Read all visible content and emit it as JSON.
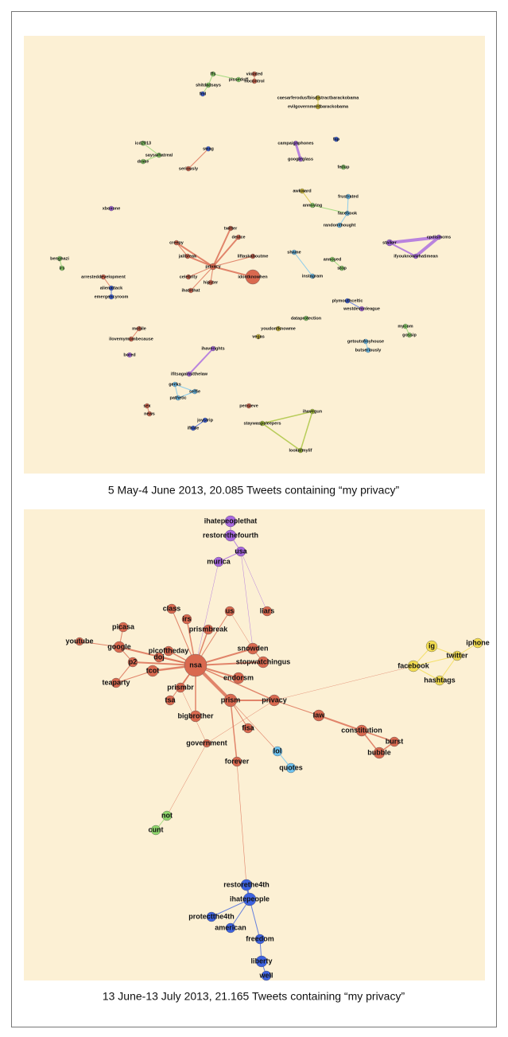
{
  "figure": {
    "panels": [
      {
        "caption": "5 May-4 June 2013, 20.085 Tweets containing “my privacy”",
        "nodes": [
          {
            "label": "ffs",
            "color": "#8fd66b"
          },
          {
            "label": "shitdadsays",
            "color": "#8fd66b"
          },
          {
            "label": "fml",
            "color": "#3e63e0"
          },
          {
            "label": "pissedoff",
            "color": "#8fd66b"
          },
          {
            "label": "violated",
            "color": "#d9694f"
          },
          {
            "label": "nocontrol",
            "color": "#d9694f"
          },
          {
            "label": "caesarferodusfbisdistractbarackobama",
            "color": "#d6c23a"
          },
          {
            "label": "evilgovernmentbarackobama",
            "color": "#d6c23a"
          },
          {
            "label": "icd2013",
            "color": "#8fd66b"
          },
          {
            "label": "sayswhatreal",
            "color": "#8fd66b"
          },
          {
            "label": "drake",
            "color": "#8fd66b"
          },
          {
            "label": "seriously",
            "color": "#d9694f"
          },
          {
            "label": "swag",
            "color": "#3e63e0"
          },
          {
            "label": "campaignphones",
            "color": "#a868e0"
          },
          {
            "label": "googleglass",
            "color": "#a868e0"
          },
          {
            "label": "fap",
            "color": "#3e63e0"
          },
          {
            "label": "fedup",
            "color": "#8fd66b"
          },
          {
            "label": "awkward",
            "color": "#d6c23a"
          },
          {
            "label": "frustrated",
            "color": "#6fc3f0"
          },
          {
            "label": "annoying",
            "color": "#8fd66b"
          },
          {
            "label": "facebook",
            "color": "#6fc3f0"
          },
          {
            "label": "randomthought",
            "color": "#6fc3f0"
          },
          {
            "label": "xboxone",
            "color": "#a868e0"
          },
          {
            "label": "stalker",
            "color": "#a868e0"
          },
          {
            "label": "cpdismcms",
            "color": "#a868e0"
          },
          {
            "label": "ifyouknowwhatimean",
            "color": "#a868e0"
          },
          {
            "label": "benghazi",
            "color": "#8fd66b"
          },
          {
            "label": "irs",
            "color": "#8fd66b"
          },
          {
            "label": "arresteddevelopment",
            "color": "#d9694f"
          },
          {
            "label": "alienattack",
            "color": "#3e63e0"
          },
          {
            "label": "emergencyroom",
            "color": "#3e63e0"
          },
          {
            "label": "privacy",
            "color": "#d9694f"
          },
          {
            "label": "creepy",
            "color": "#d9694f"
          },
          {
            "label": "jailbreak",
            "color": "#d9694f"
          },
          {
            "label": "device",
            "color": "#d9694f"
          },
          {
            "label": "twitter",
            "color": "#d9694f"
          },
          {
            "label": "celebrity",
            "color": "#d9694f"
          },
          {
            "label": "ihatethat",
            "color": "#d9694f"
          },
          {
            "label": "hipster",
            "color": "#d9694f"
          },
          {
            "label": "liftaskaboutme",
            "color": "#d9694f"
          },
          {
            "label": "idontknowhen",
            "color": "#d9694f"
          },
          {
            "label": "shame",
            "color": "#6fc3f0"
          },
          {
            "label": "annoyed",
            "color": "#8fd66b"
          },
          {
            "label": "stop",
            "color": "#8fd66b"
          },
          {
            "label": "instagram",
            "color": "#6fc3f0"
          },
          {
            "label": "plymouthceltic",
            "color": "#3e63e0"
          },
          {
            "label": "westdevonleague",
            "color": "#a868e0"
          },
          {
            "label": "dataprotection",
            "color": "#8fd66b"
          },
          {
            "label": "youdontknowme",
            "color": "#d6c23a"
          },
          {
            "label": "mycom",
            "color": "#8fd66b"
          },
          {
            "label": "gossip",
            "color": "#8fd66b"
          },
          {
            "label": "getoutofmyhouse",
            "color": "#6fc3f0"
          },
          {
            "label": "butseriously",
            "color": "#6fc3f0"
          },
          {
            "label": "mobile",
            "color": "#d9694f"
          },
          {
            "label": "ilovemymombecause",
            "color": "#d9694f"
          },
          {
            "label": "bored",
            "color": "#a868e0"
          },
          {
            "label": "ihaverights",
            "color": "#a868e0"
          },
          {
            "label": "ifitsagainstthelaw",
            "color": "#a868e0"
          },
          {
            "label": "geeks",
            "color": "#6fc3f0"
          },
          {
            "label": "selfie",
            "color": "#6fc3f0"
          },
          {
            "label": "pathetic",
            "color": "#6fc3f0"
          },
          {
            "label": "sex",
            "color": "#d9694f"
          },
          {
            "label": "news",
            "color": "#d9694f"
          },
          {
            "label": "joystrip",
            "color": "#3e63e0"
          },
          {
            "label": "ifhide",
            "color": "#3e63e0"
          },
          {
            "label": "pensieve",
            "color": "#d9694f"
          },
          {
            "label": "ihavegun",
            "color": "#a6c33a"
          },
          {
            "label": "staywaspsleepers",
            "color": "#a6c33a"
          },
          {
            "label": "lookatmylif",
            "color": "#a6c33a"
          },
          {
            "label": "vegas",
            "color": "#d6c23a"
          }
        ]
      },
      {
        "caption": "13 June-13 July 2013, 21.165 Tweets containing “my privacy”",
        "nodes": [
          {
            "label": "ihatepeoplethat",
            "color": "#a868e0"
          },
          {
            "label": "restorethefourth",
            "color": "#a868e0"
          },
          {
            "label": "usa",
            "color": "#a868e0"
          },
          {
            "label": "murica",
            "color": "#a868e0"
          },
          {
            "label": "class",
            "color": "#d9694f"
          },
          {
            "label": "irs",
            "color": "#d9694f"
          },
          {
            "label": "us",
            "color": "#d9694f"
          },
          {
            "label": "liars",
            "color": "#d9694f"
          },
          {
            "label": "prismbreak",
            "color": "#d9694f"
          },
          {
            "label": "picasa",
            "color": "#d9694f"
          },
          {
            "label": "youtube",
            "color": "#d9694f"
          },
          {
            "label": "google",
            "color": "#d9694f"
          },
          {
            "label": "doj",
            "color": "#d9694f"
          },
          {
            "label": "picoftheday",
            "color": "#d9694f"
          },
          {
            "label": "snowden",
            "color": "#d9694f"
          },
          {
            "label": "nsa",
            "color": "#d9694f"
          },
          {
            "label": "stopwatchingus",
            "color": "#d9694f"
          },
          {
            "label": "p2",
            "color": "#d9694f"
          },
          {
            "label": "tcot",
            "color": "#d9694f"
          },
          {
            "label": "teaparty",
            "color": "#d9694f"
          },
          {
            "label": "endorsm",
            "color": "#d9694f"
          },
          {
            "label": "prismbr",
            "color": "#d9694f"
          },
          {
            "label": "prism",
            "color": "#d9694f"
          },
          {
            "label": "privacy",
            "color": "#d9694f"
          },
          {
            "label": "tsa",
            "color": "#d9694f"
          },
          {
            "label": "bigbrother",
            "color": "#d9694f"
          },
          {
            "label": "law",
            "color": "#d9694f"
          },
          {
            "label": "fisa",
            "color": "#d9694f"
          },
          {
            "label": "constitution",
            "color": "#d9694f"
          },
          {
            "label": "burst",
            "color": "#d9694f"
          },
          {
            "label": "bubble",
            "color": "#d9694f"
          },
          {
            "label": "government",
            "color": "#d9694f"
          },
          {
            "label": "lol",
            "color": "#6fc3f0"
          },
          {
            "label": "quotes",
            "color": "#6fc3f0"
          },
          {
            "label": "forever",
            "color": "#d9694f"
          },
          {
            "label": "ig",
            "color": "#f2dc50"
          },
          {
            "label": "iphone",
            "color": "#f2dc50"
          },
          {
            "label": "twitter",
            "color": "#f2dc50"
          },
          {
            "label": "facebook",
            "color": "#f2dc50"
          },
          {
            "label": "hashtags",
            "color": "#f2dc50"
          },
          {
            "label": "not",
            "color": "#8fd66b"
          },
          {
            "label": "cunt",
            "color": "#8fd66b"
          },
          {
            "label": "restorethe4th",
            "color": "#3e63e0"
          },
          {
            "label": "ihatepeople",
            "color": "#3e63e0"
          },
          {
            "label": "protectthe4th",
            "color": "#3e63e0"
          },
          {
            "label": "american",
            "color": "#3e63e0"
          },
          {
            "label": "freedom",
            "color": "#3e63e0"
          },
          {
            "label": "liberty",
            "color": "#3e63e0"
          },
          {
            "label": "well",
            "color": "#3e63e0"
          }
        ]
      }
    ]
  }
}
